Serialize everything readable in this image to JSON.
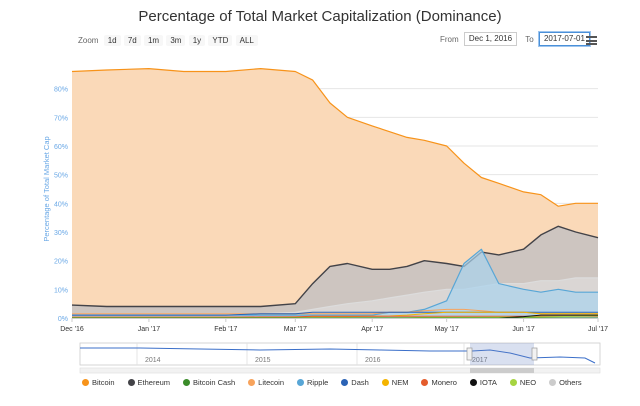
{
  "title": "Percentage of Total Market Capitalization (Dominance)",
  "toolbar": {
    "zoom_label": "Zoom",
    "buttons": [
      "1d",
      "7d",
      "1m",
      "3m",
      "1y",
      "YTD",
      "ALL"
    ]
  },
  "range": {
    "from_label": "From",
    "from_value": "Dec 1, 2016",
    "to_label": "To",
    "to_value": "2017-07-01"
  },
  "colors": {
    "Bitcoin": "#f7931a",
    "Bitcoin_fill": "#fad9b8",
    "Ethereum": "#434348",
    "Bitcoin Cash": "#3a8c2a",
    "Litecoin": "#f7a35c",
    "Ripple": "#58a6d6",
    "Dash": "#2b63b5",
    "NEM": "#f4b400",
    "Monero": "#e45c2c",
    "IOTA": "#111111",
    "NEO": "#a6d441",
    "Others": "#cccccc",
    "axis_text": "#6aa8e6",
    "navigator_line": "#3b6fc9"
  },
  "chart_data": {
    "type": "area",
    "ylabel": "Percentage of Total Market Cap",
    "ylim": [
      0,
      90
    ],
    "y_ticks": [
      "0%",
      "10%",
      "20%",
      "30%",
      "40%",
      "50%",
      "60%",
      "70%",
      "80%"
    ],
    "x_ticks": [
      "Dec '16",
      "Jan '17",
      "Feb '17",
      "Mar '17",
      "Apr '17",
      "May '17",
      "Jun '17",
      "Jul '17"
    ],
    "x": [
      "2016-12-01",
      "2016-12-15",
      "2017-01-01",
      "2017-01-15",
      "2017-02-01",
      "2017-02-15",
      "2017-03-01",
      "2017-03-08",
      "2017-03-15",
      "2017-03-22",
      "2017-04-01",
      "2017-04-08",
      "2017-04-15",
      "2017-04-22",
      "2017-05-01",
      "2017-05-08",
      "2017-05-15",
      "2017-05-22",
      "2017-06-01",
      "2017-06-08",
      "2017-06-15",
      "2017-06-22",
      "2017-07-01"
    ],
    "series": [
      {
        "name": "Bitcoin",
        "values": [
          86,
          86.5,
          87,
          86,
          86,
          87,
          86,
          83,
          75,
          70,
          67,
          65,
          63,
          62,
          60,
          54,
          49,
          47,
          44,
          43,
          39,
          40,
          40
        ]
      },
      {
        "name": "Ethereum",
        "values": [
          4.5,
          4,
          4,
          4,
          4,
          4,
          5,
          12,
          18,
          19,
          17,
          17,
          18,
          20,
          19,
          18,
          23,
          22,
          24,
          29,
          32,
          30,
          28
        ]
      },
      {
        "name": "Ripple",
        "values": [
          1,
          1,
          1,
          1,
          1,
          1,
          1,
          1,
          1,
          1,
          1,
          2,
          2,
          3,
          6,
          19,
          24,
          12,
          10,
          9,
          10,
          9,
          9
        ]
      },
      {
        "name": "Others",
        "values": [
          1.5,
          1.5,
          1.5,
          1.5,
          1.5,
          1.5,
          2,
          3,
          4,
          5,
          6,
          7,
          8,
          9,
          10,
          10,
          11,
          12,
          12,
          13,
          13,
          14,
          14
        ]
      },
      {
        "name": "Litecoin",
        "values": [
          1.5,
          1.5,
          1.5,
          1.5,
          1.5,
          1.5,
          1.5,
          1.5,
          1.5,
          1.5,
          1.5,
          2,
          2,
          2.5,
          3,
          3,
          2.5,
          2,
          2,
          1.5,
          1.5,
          1.5,
          1.5
        ]
      },
      {
        "name": "Dash",
        "values": [
          1,
          1,
          1,
          1,
          1,
          1.5,
          1.5,
          2,
          2,
          2,
          2,
          2,
          2,
          2,
          2,
          2,
          2,
          2,
          2,
          2,
          2,
          2,
          2
        ]
      },
      {
        "name": "NEM",
        "values": [
          0.3,
          0.3,
          0.3,
          0.3,
          0.3,
          0.3,
          0.4,
          0.5,
          0.5,
          0.5,
          0.6,
          0.7,
          1,
          1.5,
          2,
          2,
          2,
          2,
          2,
          1.5,
          1.5,
          1.5,
          1.5
        ]
      },
      {
        "name": "Monero",
        "values": [
          0.3,
          0.3,
          0.3,
          0.3,
          0.3,
          0.4,
          0.4,
          0.6,
          0.6,
          0.6,
          0.6,
          0.6,
          0.6,
          0.6,
          0.6,
          0.6,
          0.6,
          0.6,
          0.6,
          0.6,
          0.6,
          0.6,
          0.6
        ]
      },
      {
        "name": "IOTA",
        "values": [
          0,
          0,
          0,
          0,
          0,
          0,
          0,
          0,
          0,
          0,
          0,
          0,
          0,
          0,
          0,
          0,
          0,
          0,
          0.5,
          1,
          1,
          1,
          1
        ]
      },
      {
        "name": "NEO",
        "values": [
          0.1,
          0.1,
          0.1,
          0.1,
          0.1,
          0.1,
          0.1,
          0.1,
          0.1,
          0.1,
          0.1,
          0.1,
          0.1,
          0.2,
          0.2,
          0.2,
          0.2,
          0.3,
          0.3,
          0.4,
          0.5,
          0.6,
          0.8
        ]
      },
      {
        "name": "Bitcoin Cash",
        "values": [
          0,
          0,
          0,
          0,
          0,
          0,
          0,
          0,
          0,
          0,
          0,
          0,
          0,
          0,
          0,
          0,
          0,
          0,
          0,
          0,
          0,
          0,
          0
        ]
      }
    ],
    "legend": [
      "Bitcoin",
      "Ethereum",
      "Bitcoin Cash",
      "Litecoin",
      "Ripple",
      "Dash",
      "NEM",
      "Monero",
      "IOTA",
      "NEO",
      "Others"
    ],
    "legend_position": "bottom",
    "grid": true,
    "navigator": {
      "ticks": [
        "2014",
        "2015",
        "2016",
        "2017"
      ],
      "selected_range": [
        "2016-12-01",
        "2017-07-01"
      ]
    }
  }
}
